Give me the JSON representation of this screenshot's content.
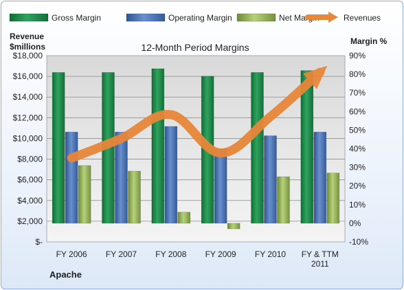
{
  "chart_data": {
    "type": "bar",
    "title": "12-Month Period Margins",
    "company": "Apache",
    "left_axis_label": [
      "Revenue",
      "$millions"
    ],
    "right_axis_label": "Margin %",
    "categories": [
      "FY 2006",
      "FY 2007",
      "FY 2008",
      "FY 2009",
      "FY 2010",
      "FY & TTM 2011"
    ],
    "left_ticks": [
      "$-",
      "$2,000",
      "$4,000",
      "$6,000",
      "$8,000",
      "$10,000",
      "$12,000",
      "$14,000",
      "$16,000",
      "$18,000"
    ],
    "left_ylim": [
      0,
      18000
    ],
    "right_ticks": [
      "-10%",
      "0%",
      "10%",
      "20%",
      "30%",
      "40%",
      "50%",
      "60%",
      "70%",
      "80%",
      "90%"
    ],
    "right_ylim": [
      -10,
      90
    ],
    "series": [
      {
        "name": "Gross Margin",
        "type": "bar",
        "axis": "right",
        "color": "#1e8a4c",
        "values": [
          81,
          81,
          83,
          79,
          81,
          82
        ]
      },
      {
        "name": "Operating Margin",
        "type": "bar",
        "axis": "right",
        "color": "#4a72b8",
        "values": [
          49,
          49,
          52,
          40,
          47,
          49
        ]
      },
      {
        "name": "Net Margin",
        "type": "bar",
        "axis": "right",
        "color": "#9bbb59",
        "values": [
          31,
          28,
          6,
          -3,
          25,
          27
        ]
      },
      {
        "name": "Revenues",
        "type": "line",
        "axis": "left",
        "color": "#e8863a",
        "values": [
          8100,
          10000,
          12300,
          8600,
          12100,
          16400
        ]
      }
    ],
    "grid": true,
    "legend_position": "top"
  }
}
